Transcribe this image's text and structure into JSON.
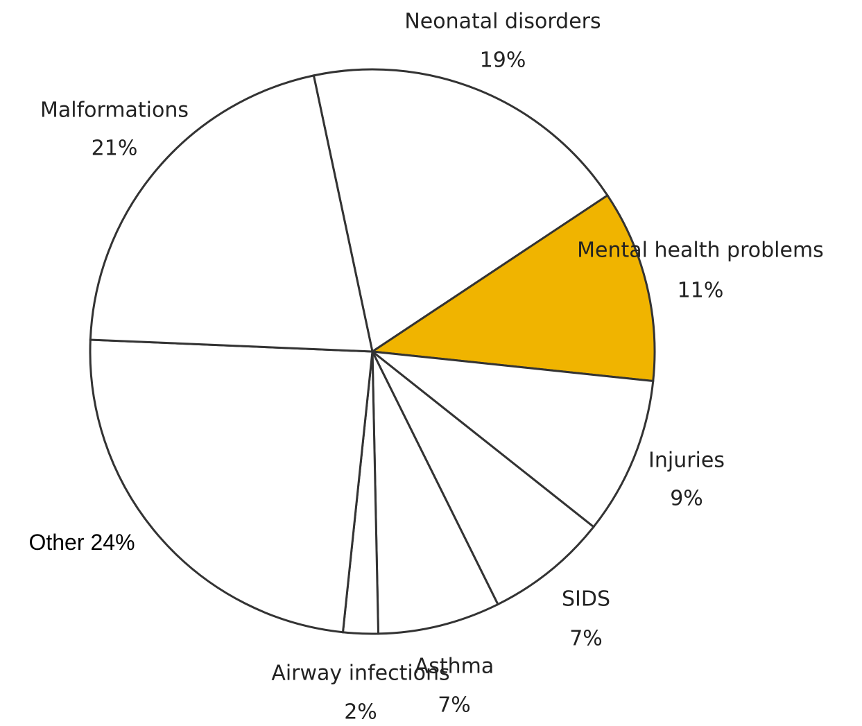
{
  "chart_data": {
    "type": "pie",
    "categories": [
      "Neonatal disorders",
      "Mental health problems",
      "Injuries",
      "SIDS",
      "Asthma",
      "Airway infections",
      "Other",
      "Malformations"
    ],
    "values": [
      19,
      11,
      9,
      7,
      7,
      2,
      24,
      21
    ],
    "value_labels": [
      "19%",
      "11%",
      "9%",
      "7%",
      "7%",
      "2%",
      "24%",
      "21%"
    ],
    "colors": [
      "#ffffff",
      "#f0b400",
      "#ffffff",
      "#ffffff",
      "#ffffff",
      "#ffffff",
      "#ffffff",
      "#ffffff"
    ]
  }
}
